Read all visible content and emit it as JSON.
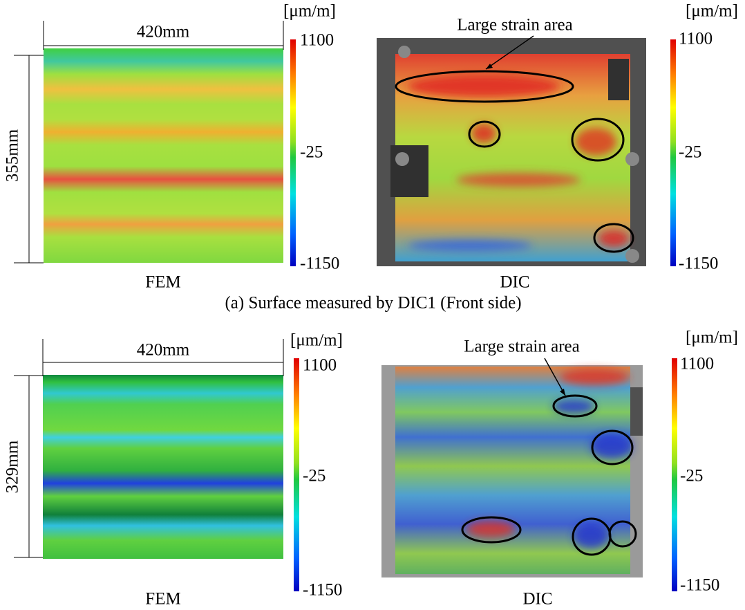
{
  "panels": [
    {
      "fem": {
        "width_label": "420mm",
        "height_label": "355mm",
        "caption": "FEM",
        "colorbar": {
          "unit": "[μm/m]",
          "ticks": [
            "1100",
            "-25",
            "-1150"
          ]
        }
      },
      "dic": {
        "annotation": "Large strain area",
        "caption": "DIC",
        "colorbar": {
          "unit": "[μm/m]",
          "ticks": [
            "1100",
            "-25",
            "-1150"
          ]
        }
      },
      "caption": "(a)  Surface measured by DIC1 (Front side)"
    },
    {
      "fem": {
        "width_label": "420mm",
        "height_label": "329mm",
        "caption": "FEM",
        "colorbar": {
          "unit": "[μm/m]",
          "ticks": [
            "1100",
            "-25",
            "-1150"
          ]
        }
      },
      "dic": {
        "annotation": "Large strain area",
        "caption": "DIC",
        "colorbar": {
          "unit": "[μm/m]",
          "ticks": [
            "1100",
            "-25",
            "-1150"
          ]
        }
      }
    }
  ]
}
